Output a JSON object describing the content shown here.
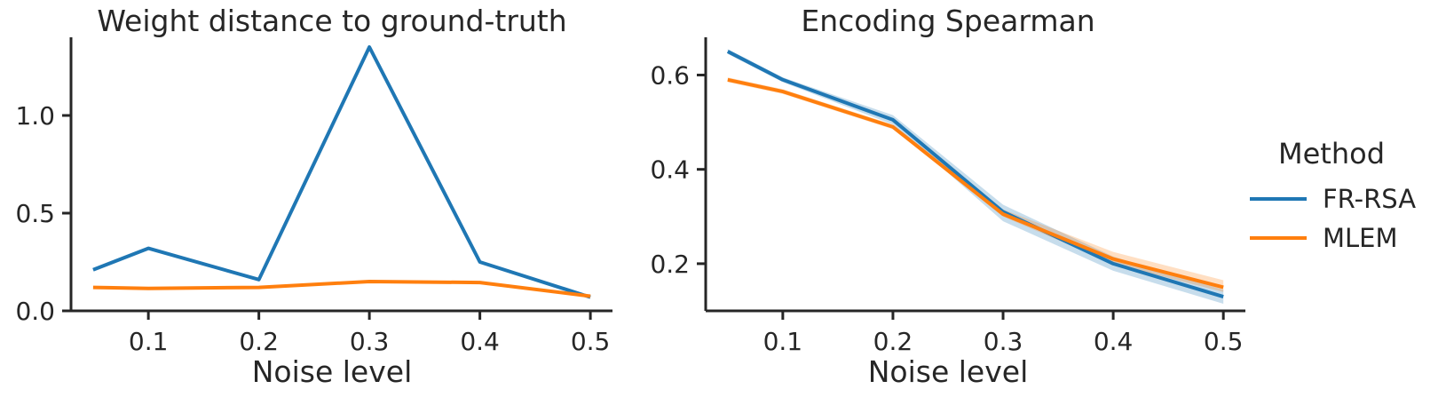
{
  "chart_data": [
    {
      "type": "line",
      "title": "Weight distance to ground-truth",
      "xlabel": "Noise level",
      "ylabel": "",
      "x": [
        0.05,
        0.1,
        0.2,
        0.3,
        0.4,
        0.5
      ],
      "xlim": [
        0.03,
        0.52
      ],
      "ylim": [
        0.0,
        1.4
      ],
      "xticks": [
        "0.1",
        "0.2",
        "0.3",
        "0.4",
        "0.5"
      ],
      "xtick_values": [
        0.1,
        0.2,
        0.3,
        0.4,
        0.5
      ],
      "yticks": [
        "0.0",
        "0.5",
        "1.0"
      ],
      "ytick_values": [
        0.0,
        0.5,
        1.0
      ],
      "series": [
        {
          "name": "FR-RSA",
          "color": "#1f77b4",
          "values": [
            0.21,
            0.32,
            0.16,
            1.35,
            0.25,
            0.07
          ]
        },
        {
          "name": "MLEM",
          "color": "#ff7f0e",
          "values": [
            0.12,
            0.115,
            0.12,
            0.15,
            0.145,
            0.075
          ]
        }
      ]
    },
    {
      "type": "line",
      "title": "Encoding Spearman",
      "xlabel": "Noise level",
      "ylabel": "",
      "x": [
        0.05,
        0.1,
        0.2,
        0.3,
        0.4,
        0.5
      ],
      "xlim": [
        0.03,
        0.52
      ],
      "ylim": [
        0.1,
        0.68
      ],
      "xticks": [
        "0.1",
        "0.2",
        "0.3",
        "0.4",
        "0.5"
      ],
      "xtick_values": [
        0.1,
        0.2,
        0.3,
        0.4,
        0.5
      ],
      "yticks": [
        "0.2",
        "0.4",
        "0.6"
      ],
      "ytick_values": [
        0.2,
        0.4,
        0.6
      ],
      "series": [
        {
          "name": "FR-RSA",
          "color": "#1f77b4",
          "values": [
            0.65,
            0.59,
            0.505,
            0.31,
            0.2,
            0.13
          ],
          "band_low": [
            0.645,
            0.585,
            0.495,
            0.29,
            0.185,
            0.115
          ],
          "band_high": [
            0.655,
            0.595,
            0.515,
            0.325,
            0.215,
            0.145
          ]
        },
        {
          "name": "MLEM",
          "color": "#ff7f0e",
          "values": [
            0.59,
            0.565,
            0.49,
            0.305,
            0.21,
            0.15
          ],
          "band_low": [
            0.585,
            0.56,
            0.485,
            0.3,
            0.2,
            0.14
          ],
          "band_high": [
            0.595,
            0.57,
            0.495,
            0.315,
            0.225,
            0.165
          ]
        }
      ]
    }
  ],
  "legend": {
    "title": "Method",
    "placement": "right",
    "entries": [
      {
        "label": "FR-RSA",
        "color": "#1f77b4"
      },
      {
        "label": "MLEM",
        "color": "#ff7f0e"
      }
    ]
  }
}
